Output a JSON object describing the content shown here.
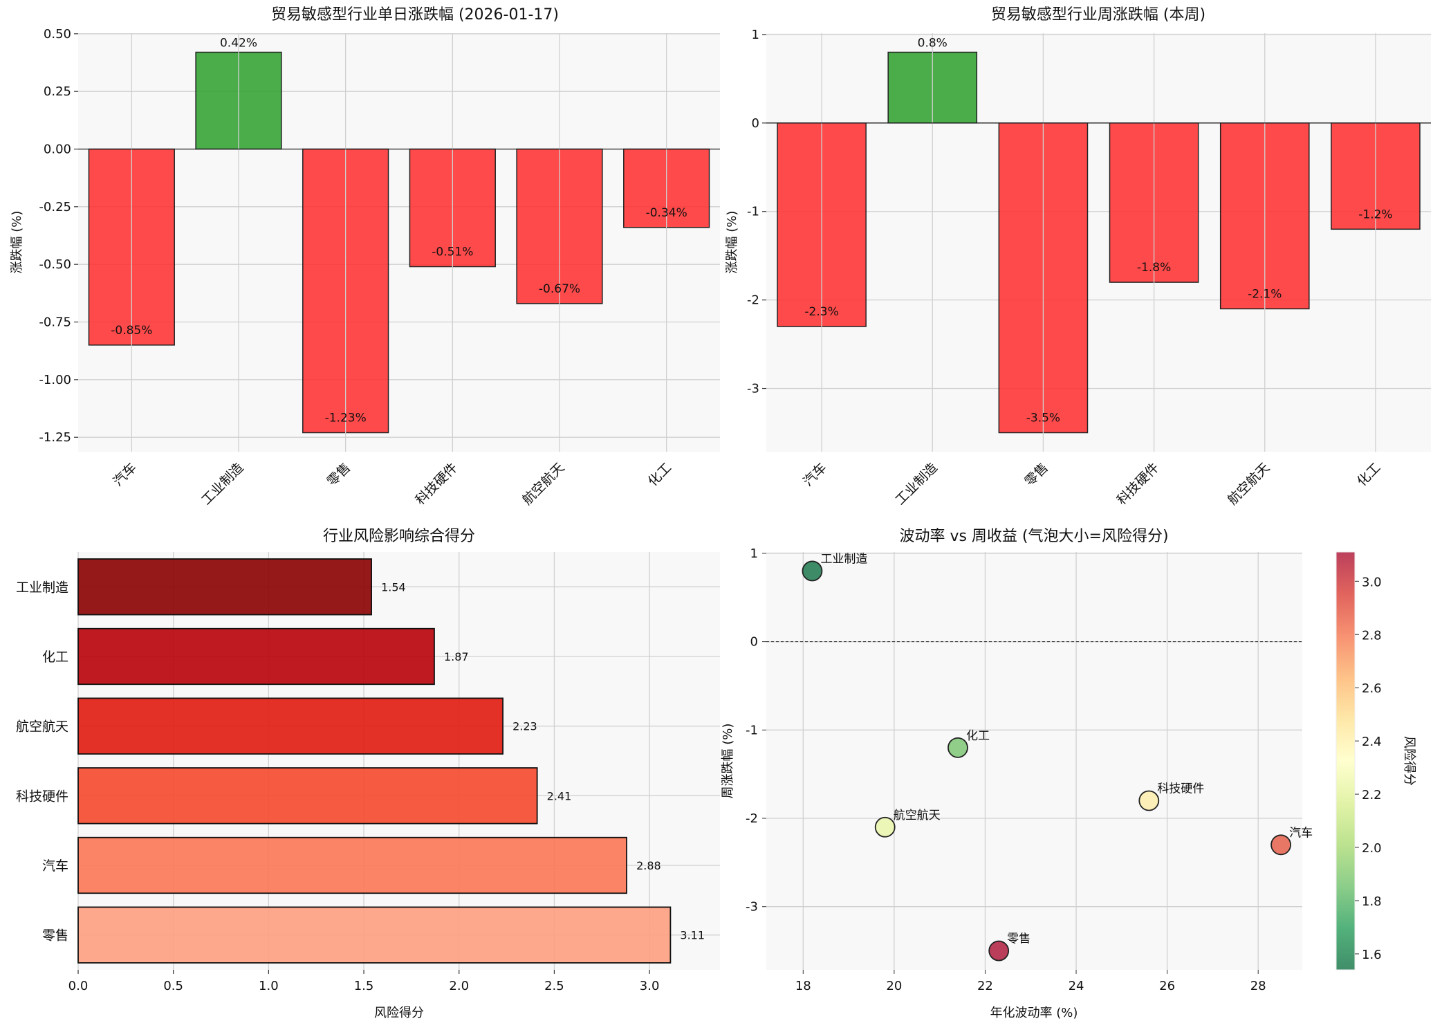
{
  "chart_data": [
    {
      "type": "bar",
      "title": "贸易敏感型行业单日涨跌幅 (2026-01-17)",
      "xlabel": "",
      "ylabel": "涨跌幅 (%)",
      "categories": [
        "汽车",
        "工业制造",
        "零售",
        "科技硬件",
        "航空航天",
        "化工"
      ],
      "values": [
        -0.85,
        0.42,
        -1.23,
        -0.51,
        -0.67,
        -0.34
      ],
      "data_labels": [
        "-0.85%",
        "0.42%",
        "-1.23%",
        "-0.51%",
        "-0.67%",
        "-0.34%"
      ],
      "ylim": [
        -1.3125,
        0.5025
      ],
      "yticks": [
        0.5,
        0.25,
        0,
        -0.25,
        -0.5,
        -0.75,
        -1.0,
        -1.25
      ],
      "ytick_labels": [
        "0.50",
        "0.25",
        "0.00",
        "-0.25",
        "-0.50",
        "-0.75",
        "-1.00",
        "-1.25"
      ],
      "grid": true,
      "colors": {
        "positive": "#2ca02c",
        "negative": "#ff2b2b"
      }
    },
    {
      "type": "bar",
      "title": "贸易敏感型行业周涨跌幅 (本周)",
      "xlabel": "",
      "ylabel": "涨跌幅 (%)",
      "categories": [
        "汽车",
        "工业制造",
        "零售",
        "科技硬件",
        "航空航天",
        "化工"
      ],
      "values": [
        -2.3,
        0.8,
        -3.5,
        -1.8,
        -2.1,
        -1.2
      ],
      "data_labels": [
        "-2.3%",
        "0.8%",
        "-3.5%",
        "-1.8%",
        "-2.1%",
        "-1.2%"
      ],
      "ylim": [
        -3.715,
        1.015
      ],
      "yticks": [
        1,
        0,
        -1,
        -2,
        -3
      ],
      "ytick_labels": [
        "1",
        "0",
        "-1",
        "-2",
        "-3"
      ],
      "grid": true,
      "colors": {
        "positive": "#2ca02c",
        "negative": "#ff2b2b"
      }
    },
    {
      "type": "bar",
      "orientation": "horizontal",
      "title": "行业风险影响综合得分",
      "xlabel": "风险得分",
      "ylabel": "",
      "categories": [
        "工业制造",
        "化工",
        "航空航天",
        "科技硬件",
        "汽车",
        "零售"
      ],
      "values": [
        1.54,
        1.87,
        2.23,
        2.41,
        2.88,
        3.11
      ],
      "data_labels": [
        "1.54",
        "1.87",
        "2.23",
        "2.41",
        "2.88",
        "3.11"
      ],
      "colors": [
        "#8b0000",
        "#b8000a",
        "#e01b10",
        "#f5492c",
        "#fc7755",
        "#fd9e80"
      ],
      "xlim": [
        0,
        3.37
      ],
      "xticks": [
        0,
        0.5,
        1.0,
        1.5,
        2.0,
        2.5,
        3.0
      ],
      "xtick_labels": [
        "0.0",
        "0.5",
        "1.0",
        "1.5",
        "2.0",
        "2.5",
        "3.0"
      ],
      "grid": true
    },
    {
      "type": "scatter",
      "title": "波动率 vs 周收益 (气泡大小=风险得分)",
      "xlabel": "年化波动率 (%)",
      "ylabel": "周涨跌幅 (%)",
      "points": [
        {
          "label": "工业制造",
          "x": 18.2,
          "y": 0.8,
          "score": 1.54
        },
        {
          "label": "化工",
          "x": 21.4,
          "y": -1.2,
          "score": 1.87
        },
        {
          "label": "航空航天",
          "x": 19.8,
          "y": -2.1,
          "score": 2.23
        },
        {
          "label": "科技硬件",
          "x": 25.6,
          "y": -1.8,
          "score": 2.41
        },
        {
          "label": "汽车",
          "x": 28.5,
          "y": -2.3,
          "score": 2.88
        },
        {
          "label": "零售",
          "x": 22.3,
          "y": -3.5,
          "score": 3.11
        }
      ],
      "xlim": [
        17.19,
        28.97
      ],
      "ylim": [
        -3.715,
        1.015
      ],
      "xticks": [
        18,
        20,
        22,
        24,
        26,
        28
      ],
      "xtick_labels": [
        "18",
        "20",
        "22",
        "24",
        "26",
        "28"
      ],
      "yticks": [
        1,
        0,
        -1,
        -2,
        -3
      ],
      "ytick_labels": [
        "1",
        "0",
        "-1",
        "-2",
        "-3"
      ],
      "grid": true,
      "colormap": "RdYlGn_r",
      "colorbar": {
        "label": "风险得分",
        "range": [
          1.54,
          3.11
        ],
        "ticks": [
          1.6,
          1.8,
          2.0,
          2.2,
          2.4,
          2.6,
          2.8,
          3.0
        ],
        "tick_labels": [
          "1.6",
          "1.8",
          "2.0",
          "2.2",
          "2.4",
          "2.6",
          "2.8",
          "3.0"
        ]
      }
    }
  ]
}
